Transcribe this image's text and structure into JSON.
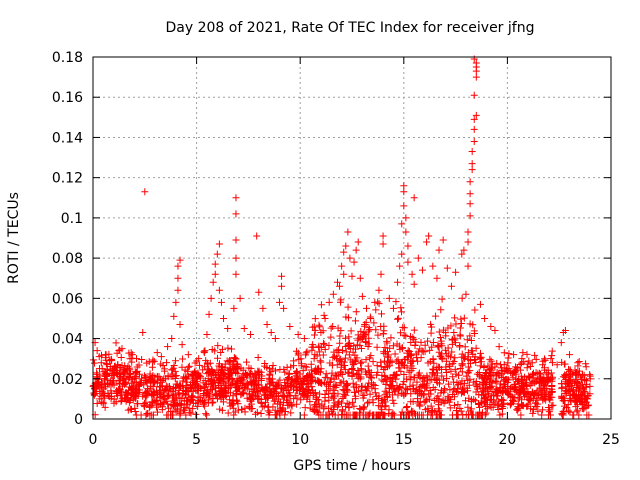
{
  "chart_data": {
    "type": "scatter",
    "title": "Day 208 of 2021, Rate Of TEC Index for receiver jfng",
    "xlabel": "GPS time / hours",
    "ylabel": "ROTI / TECUs",
    "xlim": [
      0,
      25
    ],
    "ylim": [
      0,
      0.18
    ],
    "xticks": [
      0,
      5,
      10,
      15,
      20,
      25
    ],
    "xtick_labels": [
      "0",
      "5",
      "10",
      "15",
      "20",
      "25"
    ],
    "yticks": [
      0,
      0.02,
      0.04,
      0.06,
      0.08,
      0.1,
      0.12,
      0.14,
      0.16,
      0.18
    ],
    "ytick_labels": [
      "0",
      "0.02",
      "0.04",
      "0.06",
      "0.08",
      "0.1",
      "0.12",
      "0.14",
      "0.16",
      "0.18"
    ],
    "grid": true,
    "marker": "+",
    "series": [
      {
        "name": "ROTI",
        "color": "#ff0000",
        "points": [
          [
            0.1,
            0.038
          ],
          [
            0.2,
            0.034
          ],
          [
            0.3,
            0.031
          ],
          [
            0.4,
            0.028
          ],
          [
            0.6,
            0.032
          ],
          [
            0.9,
            0.029
          ],
          [
            1.2,
            0.027
          ],
          [
            1.4,
            0.035
          ],
          [
            1.9,
            0.032
          ],
          [
            2.1,
            0.03
          ],
          [
            2.4,
            0.043
          ],
          [
            2.5,
            0.113
          ],
          [
            3.1,
            0.033
          ],
          [
            3.3,
            0.031
          ],
          [
            3.6,
            0.036
          ],
          [
            3.8,
            0.04
          ],
          [
            3.9,
            0.051
          ],
          [
            4.0,
            0.058
          ],
          [
            4.1,
            0.064
          ],
          [
            4.1,
            0.07
          ],
          [
            4.1,
            0.076
          ],
          [
            4.2,
            0.079
          ],
          [
            4.2,
            0.047
          ],
          [
            4.3,
            0.037
          ],
          [
            4.6,
            0.032
          ],
          [
            5.1,
            0.03
          ],
          [
            5.4,
            0.034
          ],
          [
            5.5,
            0.042
          ],
          [
            5.6,
            0.052
          ],
          [
            5.7,
            0.06
          ],
          [
            5.8,
            0.068
          ],
          [
            5.9,
            0.072
          ],
          [
            5.9,
            0.077
          ],
          [
            6.0,
            0.082
          ],
          [
            6.1,
            0.087
          ],
          [
            6.1,
            0.064
          ],
          [
            6.2,
            0.058
          ],
          [
            6.3,
            0.05
          ],
          [
            6.5,
            0.045
          ],
          [
            6.8,
            0.055
          ],
          [
            6.9,
            0.072
          ],
          [
            6.9,
            0.08
          ],
          [
            6.9,
            0.089
          ],
          [
            6.9,
            0.102
          ],
          [
            6.9,
            0.11
          ],
          [
            7.1,
            0.06
          ],
          [
            7.3,
            0.045
          ],
          [
            7.6,
            0.042
          ],
          [
            7.9,
            0.091
          ],
          [
            8.0,
            0.063
          ],
          [
            8.2,
            0.055
          ],
          [
            8.4,
            0.047
          ],
          [
            8.6,
            0.043
          ],
          [
            8.8,
            0.04
          ],
          [
            9.0,
            0.058
          ],
          [
            9.1,
            0.066
          ],
          [
            9.1,
            0.071
          ],
          [
            9.2,
            0.055
          ],
          [
            9.5,
            0.046
          ],
          [
            9.9,
            0.042
          ],
          [
            10.2,
            0.04
          ],
          [
            10.6,
            0.037
          ],
          [
            11.0,
            0.043
          ],
          [
            11.2,
            0.05
          ],
          [
            11.4,
            0.058
          ],
          [
            11.6,
            0.062
          ],
          [
            11.8,
            0.068
          ],
          [
            11.9,
            0.066
          ],
          [
            12.0,
            0.076
          ],
          [
            12.1,
            0.072
          ],
          [
            12.1,
            0.083
          ],
          [
            12.2,
            0.086
          ],
          [
            12.3,
            0.093
          ],
          [
            12.4,
            0.08
          ],
          [
            12.5,
            0.071
          ],
          [
            12.6,
            0.078
          ],
          [
            12.7,
            0.084
          ],
          [
            12.8,
            0.088
          ],
          [
            12.9,
            0.07
          ],
          [
            13.0,
            0.061
          ],
          [
            13.2,
            0.055
          ],
          [
            13.4,
            0.05
          ],
          [
            13.6,
            0.058
          ],
          [
            13.8,
            0.064
          ],
          [
            13.9,
            0.072
          ],
          [
            14.0,
            0.087
          ],
          [
            14.0,
            0.091
          ],
          [
            14.3,
            0.06
          ],
          [
            14.5,
            0.055
          ],
          [
            14.7,
            0.068
          ],
          [
            14.8,
            0.076
          ],
          [
            14.9,
            0.082
          ],
          [
            14.9,
            0.097
          ],
          [
            15.0,
            0.106
          ],
          [
            15.0,
            0.113
          ],
          [
            15.0,
            0.116
          ],
          [
            15.1,
            0.1
          ],
          [
            15.1,
            0.093
          ],
          [
            15.2,
            0.086
          ],
          [
            15.2,
            0.078
          ],
          [
            15.4,
            0.072
          ],
          [
            15.5,
            0.067
          ],
          [
            15.5,
            0.11
          ],
          [
            15.7,
            0.08
          ],
          [
            15.9,
            0.074
          ],
          [
            16.1,
            0.088
          ],
          [
            16.2,
            0.091
          ],
          [
            16.4,
            0.076
          ],
          [
            16.6,
            0.07
          ],
          [
            16.7,
            0.084
          ],
          [
            16.9,
            0.089
          ],
          [
            17.1,
            0.075
          ],
          [
            17.3,
            0.066
          ],
          [
            17.5,
            0.073
          ],
          [
            17.8,
            0.082
          ],
          [
            17.9,
            0.084
          ],
          [
            18.0,
            0.062
          ],
          [
            18.1,
            0.076
          ],
          [
            18.1,
            0.088
          ],
          [
            18.1,
            0.093
          ],
          [
            18.2,
            0.101
          ],
          [
            18.2,
            0.107
          ],
          [
            18.2,
            0.112
          ],
          [
            18.2,
            0.118
          ],
          [
            18.3,
            0.124
          ],
          [
            18.3,
            0.127
          ],
          [
            18.3,
            0.133
          ],
          [
            18.4,
            0.138
          ],
          [
            18.4,
            0.144
          ],
          [
            18.4,
            0.149
          ],
          [
            18.5,
            0.151
          ],
          [
            18.4,
            0.161
          ],
          [
            18.5,
            0.17
          ],
          [
            18.5,
            0.173
          ],
          [
            18.5,
            0.175
          ],
          [
            18.5,
            0.177
          ],
          [
            18.4,
            0.179
          ],
          [
            18.7,
            0.057
          ],
          [
            18.9,
            0.05
          ],
          [
            19.2,
            0.046
          ],
          [
            19.4,
            0.044
          ],
          [
            19.6,
            0.036
          ],
          [
            20.3,
            0.032
          ],
          [
            20.7,
            0.03
          ],
          [
            21.2,
            0.028
          ],
          [
            21.7,
            0.027
          ],
          [
            22.1,
            0.03
          ],
          [
            22.4,
            0.027
          ],
          [
            22.6,
            0.038
          ],
          [
            22.7,
            0.043
          ],
          [
            22.8,
            0.044
          ],
          [
            23.0,
            0.032
          ],
          [
            23.4,
            0.028
          ],
          [
            23.8,
            0.026
          ]
        ]
      }
    ]
  }
}
